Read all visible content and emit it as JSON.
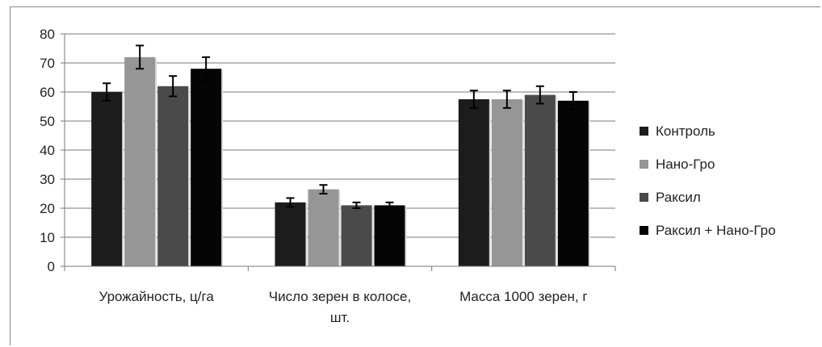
{
  "chart_data": {
    "type": "bar",
    "categories": [
      "Урожайность, ц/га",
      "Число зерен в колосе, шт.",
      "Масса 1000 зерен,  г"
    ],
    "category_lines": [
      [
        "Урожайность, ц/га"
      ],
      [
        "Число зерен в колосе,",
        "шт."
      ],
      [
        "Масса 1000 зерен,  г"
      ]
    ],
    "series": [
      {
        "name": "Контроль",
        "color": "#1c1c1c",
        "values": [
          60,
          22,
          57.5
        ],
        "errors": [
          3,
          1.5,
          3
        ]
      },
      {
        "name": "Нано-Гро",
        "color": "#969696",
        "values": [
          72,
          26.5,
          57.5
        ],
        "errors": [
          4,
          1.5,
          3
        ]
      },
      {
        "name": "Раксил",
        "color": "#4a4a4a",
        "values": [
          62,
          21,
          59
        ],
        "errors": [
          3.5,
          1,
          3
        ]
      },
      {
        "name": "Раксил + Нано-Гро",
        "color": "#050505",
        "values": [
          68,
          21,
          57
        ],
        "errors": [
          4,
          1,
          3
        ]
      }
    ],
    "ylim": [
      0,
      80
    ],
    "yticks": [
      0,
      10,
      20,
      30,
      40,
      50,
      60,
      70,
      80
    ],
    "grid": true,
    "legend_position": "right"
  }
}
